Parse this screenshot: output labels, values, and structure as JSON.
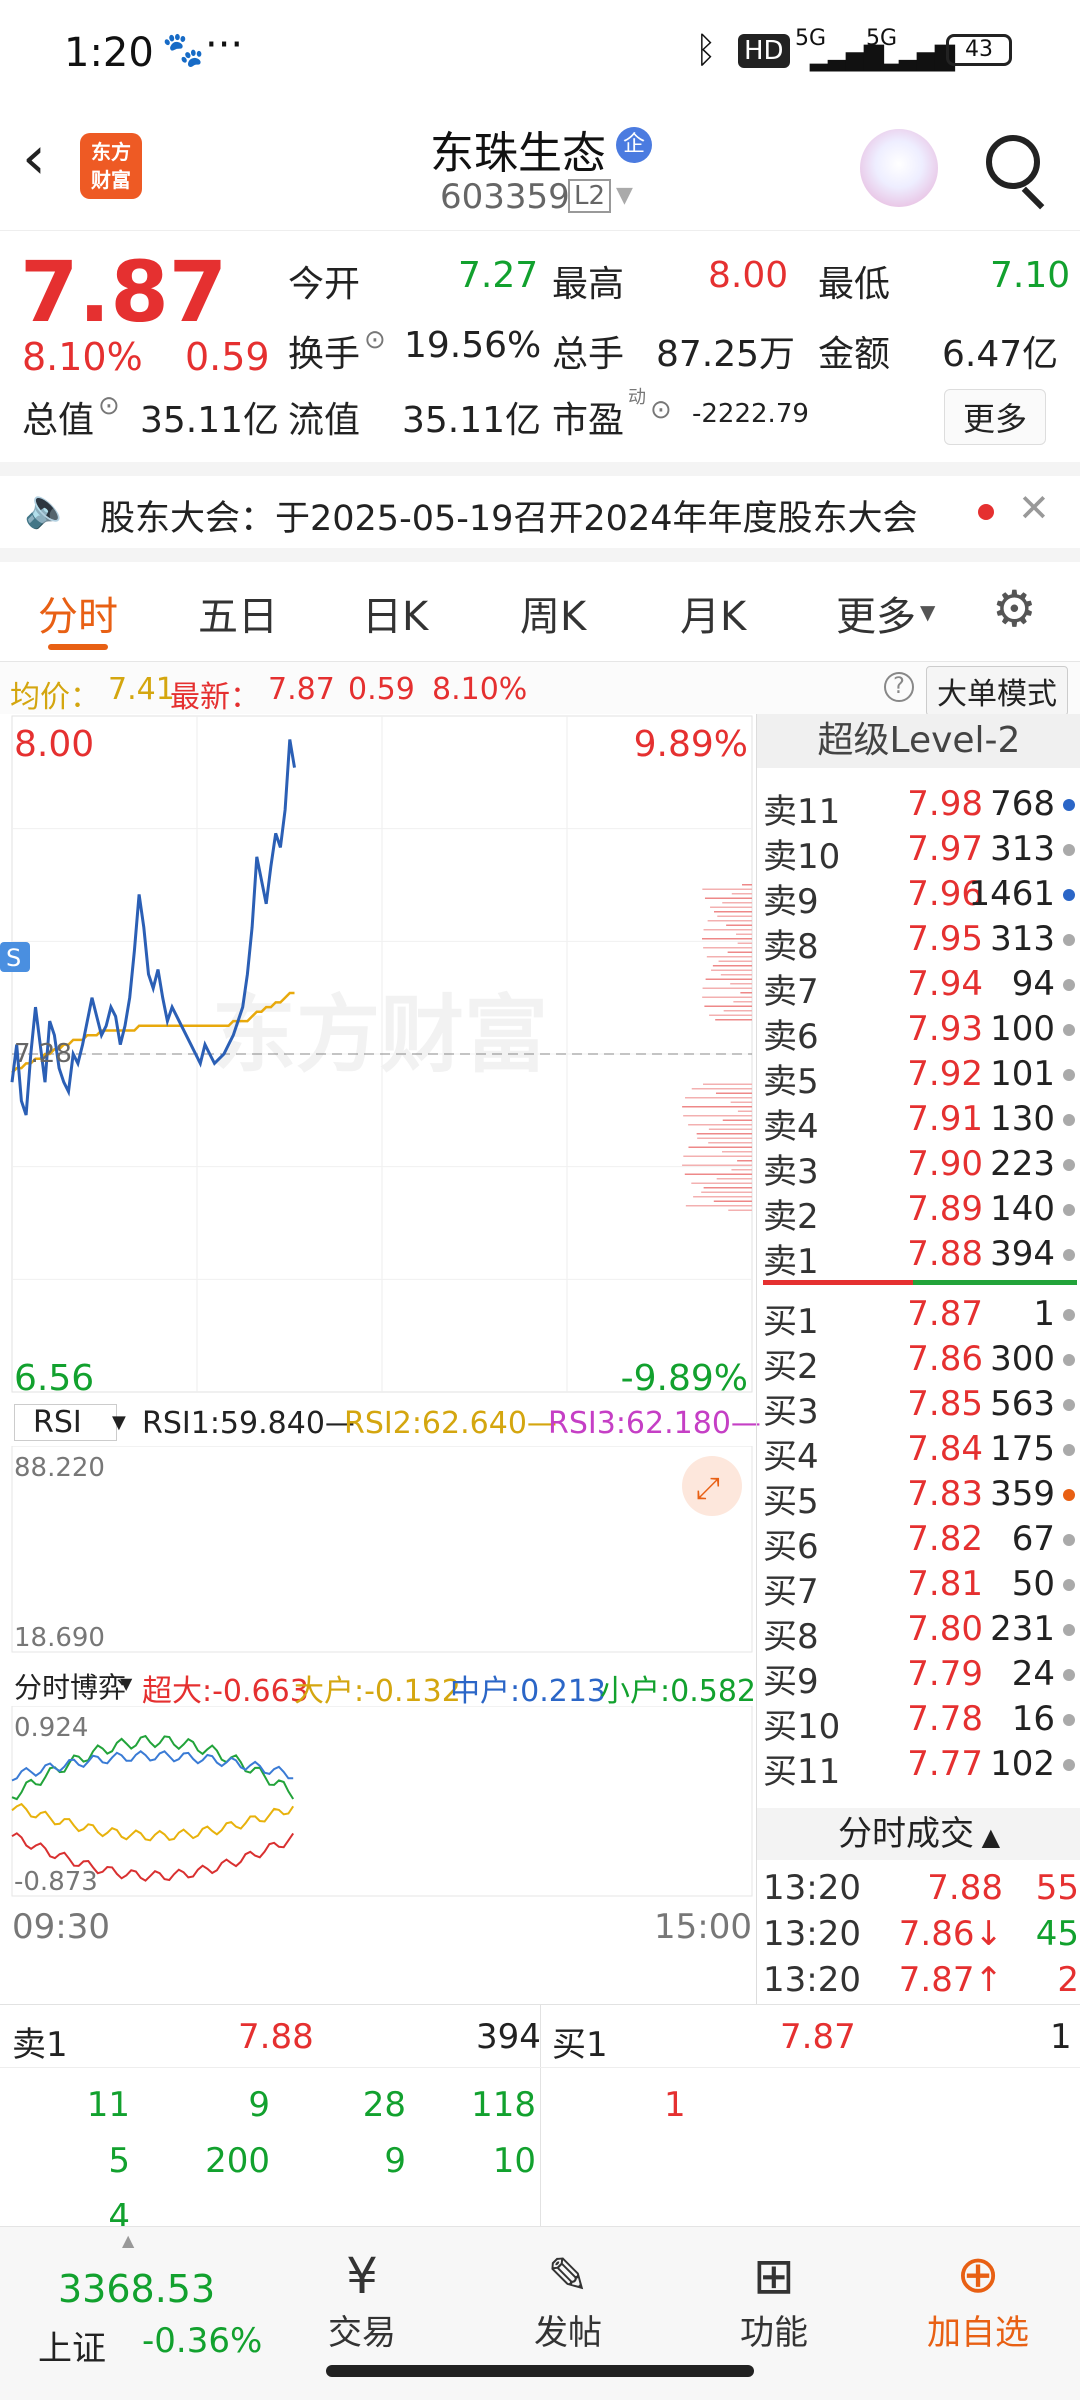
{
  "status": {
    "time": "1:20",
    "battery": "43",
    "net1": "5G",
    "net2": "5G",
    "hd": "HD"
  },
  "header": {
    "stock_name": "东珠生态",
    "badge": "企",
    "code": "603359",
    "level": "L2",
    "logo_line1": "东方",
    "logo_line2": "财富"
  },
  "quote": {
    "price": "7.87",
    "pct": "8.10%",
    "change": "0.59",
    "open_label": "今开",
    "open": "7.27",
    "high_label": "最高",
    "high": "8.00",
    "low_label": "最低",
    "low": "7.10",
    "turnover_label": "换手",
    "turnover": "19.56%",
    "volume_label": "总手",
    "volume": "87.25万",
    "amount_label": "金额",
    "amount": "6.47亿",
    "mktcap_label": "总值",
    "mktcap": "35.11亿",
    "float_label": "流值",
    "float": "35.11亿",
    "pe_label": "市盈",
    "pe_sup": "动",
    "pe": "-2222.79",
    "more_button": "更多"
  },
  "notice": {
    "text": "股东大会：于2025-05-19召开2024年年度股东大会"
  },
  "tabs": [
    "分时",
    "五日",
    "日K",
    "周K",
    "月K",
    "更多"
  ],
  "active_tab": "分时",
  "infoline": {
    "avg_label": "均价：",
    "avg": "7.41",
    "latest_label": "最新：",
    "latest": "7.87",
    "chg": "0.59",
    "pct": "8.10%",
    "mode_button": "大单模式"
  },
  "chart_data": {
    "type": "line",
    "y_top": "8.00",
    "y_bottom": "6.56",
    "pct_top": "9.89%",
    "pct_bottom": "-9.89%",
    "prev_close_label": "7.28",
    "ylim": [
      6.56,
      8.0
    ],
    "prev_close": 7.28,
    "x_start": "09:30",
    "x_end": "15:00",
    "watermark": "东方财富",
    "series": [
      {
        "values": [
          7.22,
          7.3,
          7.18,
          7.15,
          7.28,
          7.38,
          7.3,
          7.22,
          7.35,
          7.32,
          7.25,
          7.22,
          7.2,
          7.28,
          7.26,
          7.3,
          7.35,
          7.4,
          7.36,
          7.32,
          7.34,
          7.38,
          7.36,
          7.3,
          7.34,
          7.4,
          7.5,
          7.62,
          7.55,
          7.45,
          7.42,
          7.46,
          7.4,
          7.35,
          7.38,
          7.36,
          7.34,
          7.32,
          7.3,
          7.28,
          7.26,
          7.3,
          7.28,
          7.26,
          7.27,
          7.28,
          7.3,
          7.32,
          7.35,
          7.38,
          7.45,
          7.55,
          7.7,
          7.65,
          7.6,
          7.68,
          7.75,
          7.72,
          7.8,
          7.95,
          7.89
        ]
      },
      {
        "values": [
          7.24,
          7.25,
          7.25,
          7.26,
          7.26,
          7.27,
          7.27,
          7.28,
          7.28,
          7.29,
          7.29,
          7.3,
          7.3,
          7.31,
          7.31,
          7.31,
          7.32,
          7.32,
          7.32,
          7.33,
          7.33,
          7.33,
          7.33,
          7.33,
          7.33,
          7.33,
          7.33,
          7.34,
          7.34,
          7.34,
          7.34,
          7.34,
          7.34,
          7.34,
          7.34,
          7.34,
          7.34,
          7.34,
          7.34,
          7.34,
          7.34,
          7.34,
          7.34,
          7.34,
          7.34,
          7.34,
          7.34,
          7.35,
          7.35,
          7.35,
          7.35,
          7.36,
          7.37,
          7.37,
          7.38,
          7.38,
          7.39,
          7.39,
          7.4,
          7.41,
          7.41
        ]
      }
    ],
    "rsi": {
      "label": "RSI",
      "r1": "RSI1:59.840—",
      "r2": "RSI2:62.640—",
      "r3": "RSI3:62.180—",
      "top": "88.220",
      "bottom": "18.690"
    },
    "flow": {
      "label": "分时博弈",
      "big": "超大:-0.663",
      "large": "大户:-0.132",
      "mid": "中户:0.213",
      "small": "小户:0.582",
      "top": "0.924",
      "bottom": "-0.873"
    }
  },
  "book": {
    "title": "超级Level-2",
    "asks": [
      {
        "label": "卖11",
        "price": "7.98",
        "vol": "768",
        "dot": "#2b66c7"
      },
      {
        "label": "卖10",
        "price": "7.97",
        "vol": "313",
        "dot": "#aaa"
      },
      {
        "label": "卖9",
        "price": "7.96",
        "vol": "1461",
        "dot": "#2b66c7"
      },
      {
        "label": "卖8",
        "price": "7.95",
        "vol": "313",
        "dot": "#aaa"
      },
      {
        "label": "卖7",
        "price": "7.94",
        "vol": "94",
        "dot": "#aaa"
      },
      {
        "label": "卖6",
        "price": "7.93",
        "vol": "100",
        "dot": "#aaa"
      },
      {
        "label": "卖5",
        "price": "7.92",
        "vol": "101",
        "dot": "#aaa"
      },
      {
        "label": "卖4",
        "price": "7.91",
        "vol": "130",
        "dot": "#aaa"
      },
      {
        "label": "卖3",
        "price": "7.90",
        "vol": "223",
        "dot": "#aaa"
      },
      {
        "label": "卖2",
        "price": "7.89",
        "vol": "140",
        "dot": "#aaa"
      },
      {
        "label": "卖1",
        "price": "7.88",
        "vol": "394",
        "dot": "#aaa"
      }
    ],
    "bids": [
      {
        "label": "买1",
        "price": "7.87",
        "vol": "1",
        "dot": "#aaa"
      },
      {
        "label": "买2",
        "price": "7.86",
        "vol": "300",
        "dot": "#aaa"
      },
      {
        "label": "买3",
        "price": "7.85",
        "vol": "563",
        "dot": "#aaa"
      },
      {
        "label": "买4",
        "price": "7.84",
        "vol": "175",
        "dot": "#aaa"
      },
      {
        "label": "买5",
        "price": "7.83",
        "vol": "359",
        "dot": "#e86014"
      },
      {
        "label": "买6",
        "price": "7.82",
        "vol": "67",
        "dot": "#aaa"
      },
      {
        "label": "买7",
        "price": "7.81",
        "vol": "50",
        "dot": "#aaa"
      },
      {
        "label": "买8",
        "price": "7.80",
        "vol": "231",
        "dot": "#aaa"
      },
      {
        "label": "买9",
        "price": "7.79",
        "vol": "24",
        "dot": "#aaa"
      },
      {
        "label": "买10",
        "price": "7.78",
        "vol": "16",
        "dot": "#aaa"
      },
      {
        "label": "买11",
        "price": "7.77",
        "vol": "102",
        "dot": "#aaa"
      }
    ],
    "trades_title": "分时成交",
    "trades": [
      {
        "time": "13:20",
        "price": "7.88",
        "vol": "55",
        "arrow": ""
      },
      {
        "time": "13:20",
        "price": "7.86↓",
        "vol": "45",
        "arrow": "down"
      },
      {
        "time": "13:20",
        "price": "7.87↑",
        "vol": "2",
        "arrow": "up"
      }
    ]
  },
  "detail": {
    "sell_label": "卖1",
    "sell_price": "7.88",
    "sell_vol": "394",
    "buy_label": "买1",
    "buy_price": "7.87",
    "buy_vol": "1",
    "sell_queue": [
      [
        "11",
        "9",
        "28",
        "118"
      ],
      [
        "5",
        "200",
        "9",
        "10"
      ],
      [
        "4",
        "",
        "",
        ""
      ]
    ],
    "buy_queue": [
      "1"
    ]
  },
  "bottomnav": {
    "index_value": "3368.53",
    "index_name": "上证",
    "index_pct": "-0.36%",
    "trade": "交易",
    "post": "发帖",
    "func": "功能",
    "add": "加自选"
  }
}
